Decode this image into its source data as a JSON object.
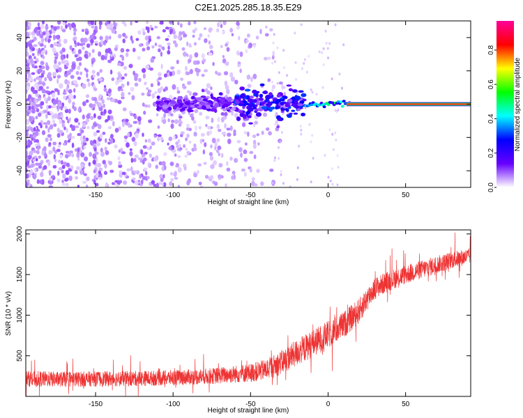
{
  "title": "C2E1.2025.285.18.35.E29",
  "chart_data": [
    {
      "type": "heatmap",
      "title": "C2E1.2025.285.18.35.E29",
      "xlabel": "Height of straight line (km)",
      "ylabel": "Frequency (Hz)",
      "xlim": [
        -195,
        92
      ],
      "ylim": [
        -50,
        50
      ],
      "xticks": [
        -150,
        -100,
        -50,
        0,
        50
      ],
      "yticks": [
        -40,
        -20,
        0,
        20,
        40
      ],
      "colorbar": {
        "label": "Normalized spectral amplitude",
        "range": [
          0,
          0.97
        ],
        "ticks": [
          0.0,
          0.2,
          0.4,
          0.6,
          0.8
        ],
        "colormap": [
          "#ffffff",
          "#6600ff",
          "#0000ff",
          "#00ffff",
          "#00ff00",
          "#ffff00",
          "#ff0000",
          "#ff0099"
        ]
      },
      "features": [
        {
          "label": "diffuse noise",
          "x_range": [
            -195,
            -40
          ],
          "y_range": [
            -50,
            50
          ],
          "amplitude": 0.05
        },
        {
          "label": "signal onset",
          "x_range": [
            -90,
            -15
          ],
          "y_center": 0,
          "amplitude": 0.3
        },
        {
          "label": "carrier line",
          "x_range": [
            15,
            92
          ],
          "y_center": 0,
          "amplitude": 0.9
        }
      ]
    },
    {
      "type": "line",
      "xlabel": "Height of straight line (km)",
      "ylabel": "SNR (10 * v/v)",
      "xlim": [
        -195,
        92
      ],
      "ylim": [
        0,
        2050
      ],
      "xticks": [
        -150,
        -100,
        -50,
        0,
        50
      ],
      "yticks": [
        500,
        1000,
        1500,
        2000
      ],
      "color": "#ee3333",
      "series": [
        {
          "name": "SNR",
          "x": [
            -195,
            -175,
            -150,
            -125,
            -100,
            -75,
            -50,
            -40,
            -30,
            -20,
            -10,
            0,
            10,
            20,
            25,
            30,
            40,
            50,
            60,
            70,
            80,
            92
          ],
          "mean": [
            220,
            210,
            215,
            220,
            230,
            250,
            290,
            330,
            420,
            540,
            650,
            760,
            880,
            1050,
            1200,
            1330,
            1430,
            1500,
            1560,
            1620,
            1680,
            1730
          ],
          "spread": [
            200,
            190,
            190,
            190,
            190,
            200,
            230,
            260,
            300,
            330,
            340,
            340,
            330,
            310,
            290,
            270,
            250,
            240,
            230,
            220,
            210,
            200
          ]
        }
      ]
    }
  ]
}
